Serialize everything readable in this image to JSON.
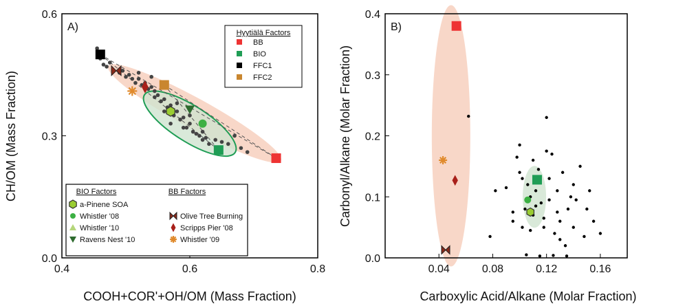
{
  "chart_data": [
    {
      "type": "scatter",
      "panel_label": "A)",
      "xlabel": "COOH+COR'+OH/OM (Mass Fraction)",
      "ylabel": "CH/OM (Mass Fraction)",
      "xlim": [
        0.4,
        0.8
      ],
      "ylim": [
        0.0,
        0.6
      ],
      "xticks": [
        "0.4",
        "0.6",
        "0.8"
      ],
      "yticks": [
        "0.0",
        "0.3",
        "0.6"
      ],
      "hyytiala_legend_title": "Hyytiälä Factors",
      "bio_legend_title": "BIO Factors",
      "bb_legend_title": "BB Factors",
      "series": [
        {
          "name": "BB",
          "group": "Hyytiälä Factors",
          "marker": "square",
          "color": "#ee3333",
          "x": [
            0.735
          ],
          "y": [
            0.245
          ]
        },
        {
          "name": "BIO",
          "group": "Hyytiälä Factors",
          "marker": "square",
          "color": "#1f9d55",
          "x": [
            0.645
          ],
          "y": [
            0.265
          ]
        },
        {
          "name": "FFC1",
          "group": "Hyytiälä Factors",
          "marker": "square",
          "color": "#000000",
          "x": [
            0.46
          ],
          "y": [
            0.5
          ]
        },
        {
          "name": "FFC2",
          "group": "Hyytiälä Factors",
          "marker": "square",
          "color": "#c9862f",
          "x": [
            0.56
          ],
          "y": [
            0.425
          ]
        },
        {
          "name": "a-Pinene SOA",
          "group": "BIO Factors",
          "marker": "hexagon",
          "color": "#9acd32",
          "x": [
            0.57
          ],
          "y": [
            0.36
          ]
        },
        {
          "name": "Whistler '08",
          "group": "BIO Factors",
          "marker": "circle",
          "color": "#3cb043",
          "x": [
            0.62
          ],
          "y": [
            0.33
          ]
        },
        {
          "name": "Whistler '10",
          "group": "BIO Factors",
          "marker": "triangle-up",
          "color": "#b5d67b",
          "x": [
            0.6
          ],
          "y": [
            0.365
          ]
        },
        {
          "name": "Ravens Nest '10",
          "group": "BIO Factors",
          "marker": "triangle-down",
          "color": "#2e6b2e",
          "x": [
            0.6
          ],
          "y": [
            0.365
          ]
        },
        {
          "name": "Olive Tree Burning",
          "group": "BB Factors",
          "marker": "bowtie",
          "color": "#8b2a1a",
          "x": [
            0.485
          ],
          "y": [
            0.46
          ]
        },
        {
          "name": "Scripps Pier '08",
          "group": "BB Factors",
          "marker": "diamond",
          "color": "#a8201a",
          "x": [
            0.53
          ],
          "y": [
            0.42
          ]
        },
        {
          "name": "Whistler '09",
          "group": "BB Factors",
          "marker": "asterisk",
          "color": "#e08a2c",
          "x": [
            0.51
          ],
          "y": [
            0.41
          ]
        }
      ],
      "points": {
        "x": [
          0.455,
          0.46,
          0.465,
          0.47,
          0.475,
          0.48,
          0.49,
          0.495,
          0.5,
          0.505,
          0.51,
          0.515,
          0.52,
          0.525,
          0.53,
          0.535,
          0.54,
          0.545,
          0.545,
          0.55,
          0.555,
          0.56,
          0.565,
          0.57,
          0.575,
          0.58,
          0.585,
          0.59,
          0.595,
          0.6,
          0.605,
          0.61,
          0.615,
          0.62,
          0.625,
          0.63,
          0.64,
          0.65,
          0.66,
          0.67,
          0.68,
          0.69,
          0.56,
          0.58,
          0.6,
          0.52,
          0.54,
          0.62,
          0.57,
          0.59
        ],
        "y": [
          0.515,
          0.49,
          0.475,
          0.47,
          0.48,
          0.46,
          0.455,
          0.46,
          0.445,
          0.45,
          0.44,
          0.43,
          0.44,
          0.425,
          0.43,
          0.415,
          0.42,
          0.41,
          0.395,
          0.4,
          0.385,
          0.39,
          0.37,
          0.375,
          0.35,
          0.36,
          0.34,
          0.345,
          0.32,
          0.33,
          0.31,
          0.305,
          0.3,
          0.29,
          0.295,
          0.28,
          0.29,
          0.285,
          0.28,
          0.3,
          0.27,
          0.26,
          0.36,
          0.38,
          0.35,
          0.455,
          0.445,
          0.31,
          0.33,
          0.32
        ]
      }
    },
    {
      "type": "scatter",
      "panel_label": "B)",
      "xlabel": "Carboxylic Acid/Alkane (Molar Fraction)",
      "ylabel": "Carbonyl/Alkane (Molar Fraction)",
      "xlim": [
        0.0,
        0.18
      ],
      "ylim": [
        0.0,
        0.4
      ],
      "xticks": [
        "0.04",
        "0.08",
        "0.12",
        "0.16"
      ],
      "yticks": [
        "0.0",
        "0.1",
        "0.2",
        "0.3",
        "0.4"
      ],
      "series": [
        {
          "name": "BB",
          "marker": "square",
          "color": "#ee3333",
          "x": [
            0.053
          ],
          "y": [
            0.38
          ]
        },
        {
          "name": "BIO",
          "marker": "square",
          "color": "#1f9d55",
          "x": [
            0.113
          ],
          "y": [
            0.128
          ]
        },
        {
          "name": "Whistler '09",
          "marker": "asterisk",
          "color": "#e08a2c",
          "x": [
            0.043
          ],
          "y": [
            0.16
          ]
        },
        {
          "name": "Scripps Pier '08",
          "marker": "diamond",
          "color": "#a8201a",
          "x": [
            0.052
          ],
          "y": [
            0.127
          ]
        },
        {
          "name": "Olive Tree Burning",
          "marker": "bowtie",
          "color": "#8b2a1a",
          "x": [
            0.045
          ],
          "y": [
            0.013
          ]
        },
        {
          "name": "Whistler '08",
          "marker": "circle",
          "color": "#3cb043",
          "x": [
            0.106
          ],
          "y": [
            0.095
          ]
        },
        {
          "name": "a-Pinene SOA",
          "marker": "hexagon",
          "color": "#9acd32",
          "x": [
            0.108
          ],
          "y": [
            0.075
          ]
        }
      ],
      "points": {
        "x": [
          0.062,
          0.078,
          0.082,
          0.09,
          0.095,
          0.098,
          0.1,
          0.102,
          0.104,
          0.106,
          0.108,
          0.11,
          0.112,
          0.114,
          0.116,
          0.118,
          0.12,
          0.122,
          0.124,
          0.126,
          0.128,
          0.13,
          0.132,
          0.134,
          0.136,
          0.138,
          0.14,
          0.142,
          0.145,
          0.148,
          0.15,
          0.152,
          0.155,
          0.16,
          0.105,
          0.115,
          0.125,
          0.135,
          0.1,
          0.12,
          0.11,
          0.13,
          0.14,
          0.118,
          0.108,
          0.122,
          0.128,
          0.112,
          0.095,
          0.102
        ],
        "y": [
          0.232,
          0.035,
          0.11,
          0.115,
          0.06,
          0.165,
          0.14,
          0.05,
          0.08,
          0.12,
          0.1,
          0.07,
          0.085,
          0.145,
          0.09,
          0.05,
          0.23,
          0.13,
          0.17,
          0.04,
          0.11,
          0.06,
          0.14,
          0.02,
          0.08,
          0.1,
          0.05,
          0.095,
          0.15,
          0.035,
          0.08,
          0.11,
          0.06,
          0.04,
          0.005,
          0.003,
          0.004,
          0.003,
          0.185,
          0.175,
          0.16,
          0.03,
          0.12,
          0.065,
          0.045,
          0.095,
          0.075,
          0.11,
          0.075,
          0.13
        ]
      }
    }
  ]
}
